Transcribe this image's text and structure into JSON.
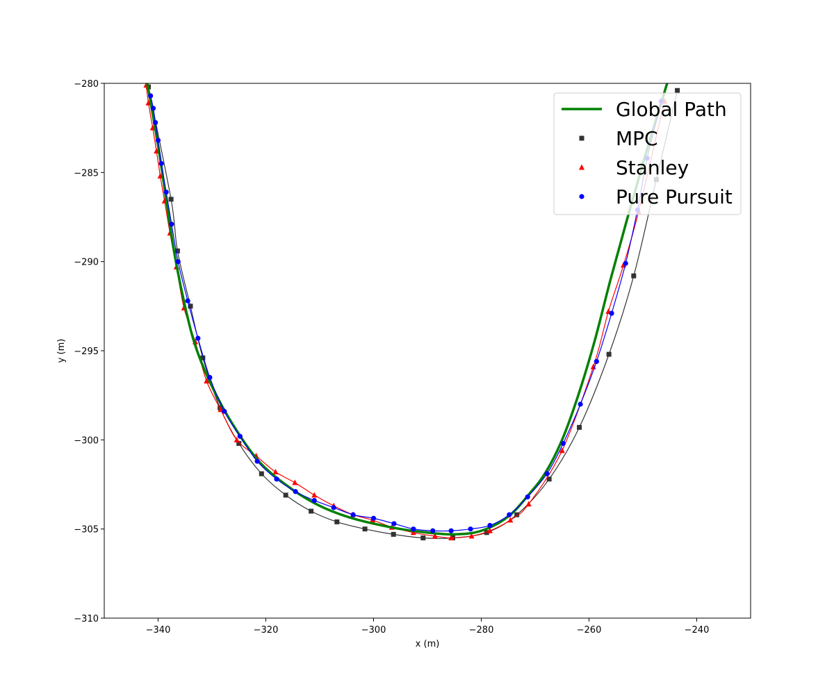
{
  "chart_data": {
    "type": "line",
    "title": "",
    "xlabel": "x (m)",
    "ylabel": "y (m)",
    "xlim": [
      -350,
      -230
    ],
    "ylim": [
      -310,
      -280
    ],
    "xticks": [
      -340,
      -320,
      -300,
      -280,
      -260,
      -240
    ],
    "yticks": [
      -280,
      -285,
      -290,
      -295,
      -300,
      -305,
      -310
    ],
    "xtick_labels": [
      "−340",
      "−320",
      "−300",
      "−280",
      "−260",
      "−240"
    ],
    "ytick_labels": [
      "−280",
      "−285",
      "−290",
      "−295",
      "−300",
      "−305",
      "−310"
    ],
    "grid": false,
    "legend_position": "top-right",
    "series": [
      {
        "name": "Global Path",
        "color": "#008000",
        "marker": "none",
        "points": [
          [
            -342.0,
            -280.0
          ],
          [
            -340.0,
            -283.5
          ],
          [
            -338.5,
            -286.5
          ],
          [
            -337.0,
            -289.5
          ],
          [
            -335.0,
            -292.5
          ],
          [
            -333.0,
            -294.8
          ],
          [
            -330.0,
            -297.0
          ],
          [
            -326.0,
            -299.2
          ],
          [
            -321.0,
            -301.3
          ],
          [
            -315.0,
            -302.8
          ],
          [
            -310.0,
            -303.7
          ],
          [
            -305.0,
            -304.3
          ],
          [
            -300.0,
            -304.7
          ],
          [
            -295.0,
            -305.0
          ],
          [
            -290.0,
            -305.2
          ],
          [
            -285.0,
            -305.3
          ],
          [
            -280.0,
            -305.1
          ],
          [
            -275.0,
            -304.3
          ],
          [
            -271.0,
            -303.0
          ],
          [
            -268.0,
            -301.8
          ],
          [
            -265.0,
            -300.0
          ],
          [
            -262.0,
            -297.5
          ],
          [
            -259.0,
            -294.5
          ],
          [
            -256.0,
            -291.0
          ],
          [
            -253.0,
            -287.7
          ],
          [
            -250.0,
            -284.5
          ],
          [
            -247.0,
            -281.5
          ],
          [
            -245.5,
            -280.0
          ]
        ]
      },
      {
        "name": "MPC",
        "color": "#333333",
        "marker": "square",
        "points": [
          [
            -341.8,
            -280.2
          ],
          [
            -337.6,
            -286.5
          ],
          [
            -336.4,
            -289.4
          ],
          [
            -334.0,
            -292.5
          ],
          [
            -331.7,
            -295.4
          ],
          [
            -328.5,
            -298.2
          ],
          [
            -325.0,
            -300.2
          ],
          [
            -320.8,
            -301.9
          ],
          [
            -316.3,
            -303.1
          ],
          [
            -311.6,
            -304.0
          ],
          [
            -306.8,
            -304.6
          ],
          [
            -301.6,
            -305.0
          ],
          [
            -296.3,
            -305.3
          ],
          [
            -290.8,
            -305.5
          ],
          [
            -285.3,
            -305.5
          ],
          [
            -279.0,
            -305.2
          ],
          [
            -273.4,
            -304.2
          ],
          [
            -267.4,
            -302.2
          ],
          [
            -261.8,
            -299.3
          ],
          [
            -256.3,
            -295.2
          ],
          [
            -251.7,
            -290.8
          ],
          [
            -247.5,
            -285.4
          ],
          [
            -243.6,
            -280.4
          ]
        ]
      },
      {
        "name": "Stanley",
        "color": "#ff0000",
        "marker": "triangle",
        "points": [
          [
            -342.2,
            -280.1
          ],
          [
            -341.8,
            -281.1
          ],
          [
            -341.0,
            -282.5
          ],
          [
            -340.3,
            -283.8
          ],
          [
            -339.6,
            -285.2
          ],
          [
            -338.8,
            -286.6
          ],
          [
            -337.8,
            -288.4
          ],
          [
            -336.6,
            -290.3
          ],
          [
            -335.2,
            -292.6
          ],
          [
            -333.1,
            -294.5
          ],
          [
            -331.0,
            -296.7
          ],
          [
            -328.4,
            -298.3
          ],
          [
            -325.4,
            -300.0
          ],
          [
            -321.8,
            -300.9
          ],
          [
            -318.2,
            -301.8
          ],
          [
            -314.6,
            -302.4
          ],
          [
            -311.0,
            -303.1
          ],
          [
            -307.4,
            -303.7
          ],
          [
            -303.8,
            -304.2
          ],
          [
            -300.2,
            -304.5
          ],
          [
            -296.6,
            -304.9
          ],
          [
            -292.6,
            -305.2
          ],
          [
            -288.6,
            -305.4
          ],
          [
            -285.6,
            -305.5
          ],
          [
            -281.8,
            -305.4
          ],
          [
            -278.4,
            -305.1
          ],
          [
            -274.6,
            -304.5
          ],
          [
            -271.2,
            -303.6
          ],
          [
            -265.0,
            -300.6
          ],
          [
            -259.2,
            -295.9
          ],
          [
            -256.4,
            -292.8
          ],
          [
            -253.6,
            -290.2
          ],
          [
            -250.8,
            -287.2
          ],
          [
            -246.0,
            -281.0
          ]
        ]
      },
      {
        "name": "Pure Pursuit",
        "color": "#0000ff",
        "marker": "circle",
        "points": [
          [
            -341.4,
            -280.7
          ],
          [
            -340.9,
            -281.4
          ],
          [
            -340.5,
            -282.2
          ],
          [
            -340.0,
            -283.2
          ],
          [
            -339.4,
            -284.5
          ],
          [
            -338.5,
            -286.1
          ],
          [
            -337.5,
            -287.9
          ],
          [
            -336.3,
            -290.0
          ],
          [
            -334.5,
            -292.2
          ],
          [
            -332.6,
            -294.3
          ],
          [
            -330.4,
            -296.5
          ],
          [
            -327.7,
            -298.4
          ],
          [
            -324.8,
            -299.8
          ],
          [
            -321.6,
            -301.2
          ],
          [
            -318.0,
            -302.2
          ],
          [
            -314.5,
            -302.9
          ],
          [
            -311.0,
            -303.4
          ],
          [
            -307.4,
            -303.8
          ],
          [
            -303.8,
            -304.2
          ],
          [
            -300.0,
            -304.4
          ],
          [
            -296.2,
            -304.7
          ],
          [
            -292.6,
            -305.0
          ],
          [
            -289.0,
            -305.1
          ],
          [
            -285.6,
            -305.1
          ],
          [
            -282.0,
            -305.0
          ],
          [
            -278.4,
            -304.8
          ],
          [
            -274.8,
            -304.2
          ],
          [
            -271.4,
            -303.2
          ],
          [
            -267.8,
            -301.9
          ],
          [
            -264.8,
            -300.2
          ],
          [
            -261.6,
            -298.0
          ],
          [
            -258.6,
            -295.6
          ],
          [
            -255.8,
            -292.9
          ],
          [
            -253.2,
            -290.1
          ],
          [
            -251.0,
            -287.1
          ],
          [
            -249.2,
            -284.2
          ],
          [
            -246.6,
            -281.0
          ]
        ]
      }
    ]
  }
}
